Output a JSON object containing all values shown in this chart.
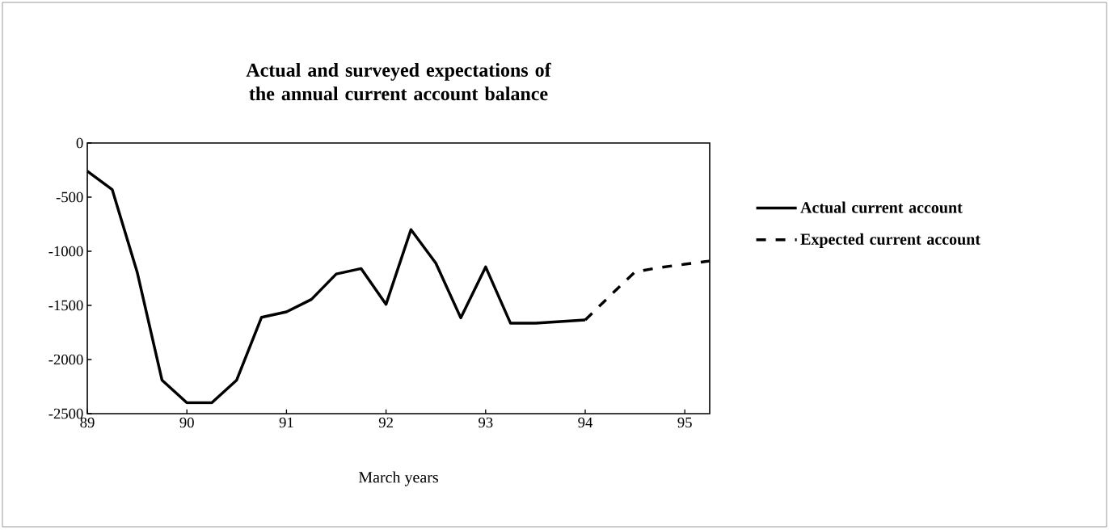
{
  "chart_data": {
    "type": "line",
    "title": "Actual and surveyed expectations of the annual current account balance",
    "xlabel": "March years",
    "xlim": [
      89,
      95.25
    ],
    "xticks": [
      89,
      90,
      91,
      92,
      93,
      94,
      95
    ],
    "ylim": [
      -2500,
      0
    ],
    "yticks": [
      0,
      -500,
      -1000,
      -1500,
      -2000,
      -2500
    ],
    "legend": "right",
    "series": [
      {
        "name": "Actual current account",
        "color": "#000000",
        "line_style": "solid",
        "x": [
          89,
          89.25,
          89.5,
          89.75,
          90,
          90.25,
          90.5,
          90.75,
          91,
          91.25,
          91.5,
          91.75,
          92,
          92.25,
          92.5,
          92.75,
          93,
          93.25,
          93.5,
          93.75,
          94
        ],
        "values": [
          -260,
          -430,
          -1190,
          -2190,
          -2400,
          -2400,
          -2190,
          -1610,
          -1560,
          -1445,
          -1210,
          -1160,
          -1490,
          -800,
          -1110,
          -1615,
          -1145,
          -1665,
          -1665,
          -1650,
          -1635
        ]
      },
      {
        "name": "Expected current account",
        "color": "#000000",
        "line_style": "dashed",
        "x": [
          94,
          94.25,
          94.5,
          94.75,
          95,
          95.25
        ],
        "values": [
          -1635,
          -1410,
          -1190,
          -1150,
          -1120,
          -1090
        ]
      }
    ]
  }
}
